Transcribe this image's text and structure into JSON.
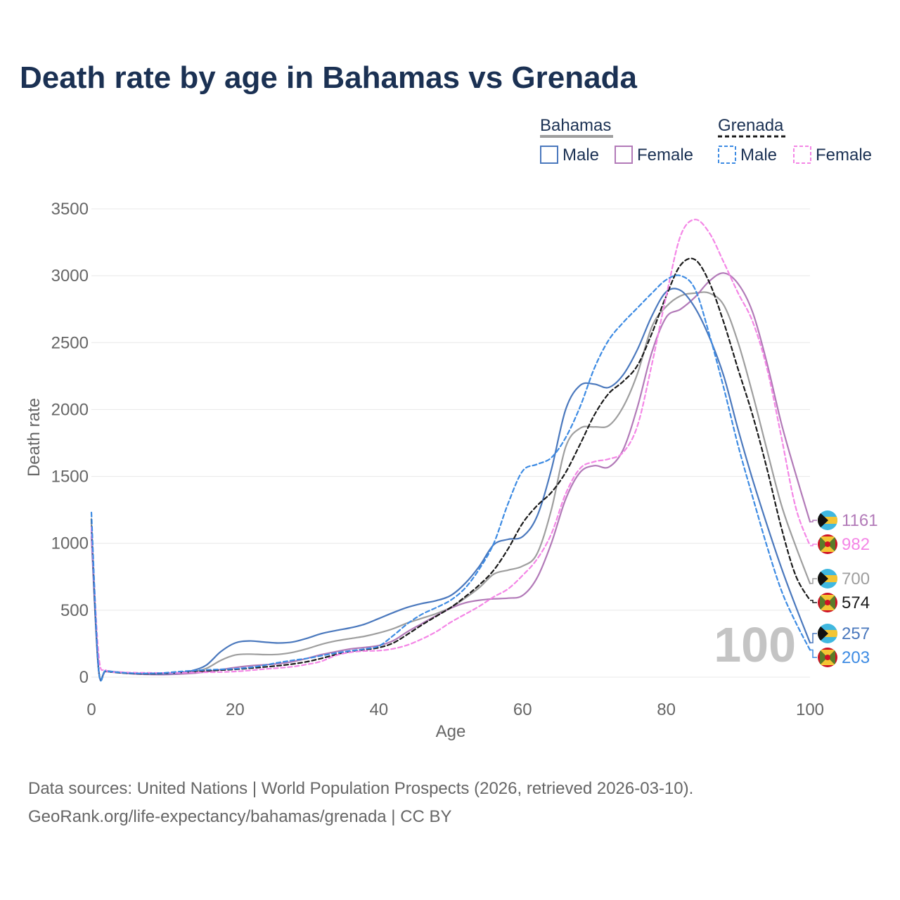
{
  "title": "Death rate by age in Bahamas vs Grenada",
  "legend": {
    "group1": "Bahamas",
    "group2": "Grenada",
    "male_label": "Male",
    "female_label": "Female"
  },
  "overlay_age": "100",
  "footer": {
    "line1": "Data sources: United Nations | World Population Prospects (2026, retrieved 2026-03-10).",
    "line2": "GeoRank.org/life-expectancy/bahamas/grenada | CC BY"
  },
  "colors": {
    "title": "#1b3153",
    "bahamas_male": "#4a78bd",
    "bahamas_female": "#b27ab8",
    "bahamas_total": "#9e9e9e",
    "grenada_male": "#3d8be3",
    "grenada_female": "#f486e6",
    "grenada_total": "#1a1a1a",
    "grid": "#e8e8e8",
    "axis_text": "#666666",
    "overlay": "#c4c4c4"
  },
  "chart_data": {
    "type": "line",
    "xlabel": "Age",
    "ylabel": "Death rate",
    "xlim": [
      0,
      100
    ],
    "ylim": [
      0,
      3500
    ],
    "xticks": [
      0,
      20,
      40,
      60,
      80,
      100
    ],
    "yticks": [
      0,
      500,
      1000,
      1500,
      2000,
      2500,
      3000,
      3500
    ],
    "grid": true,
    "series": [
      {
        "name": "Bahamas Total",
        "country": "Bahamas",
        "sex": "Total",
        "color": "#9e9e9e",
        "dash": false,
        "end_value": 700,
        "x": [
          0,
          1,
          2,
          4,
          6,
          8,
          10,
          12,
          14,
          16,
          18,
          20,
          22,
          24,
          26,
          28,
          30,
          32,
          34,
          36,
          38,
          40,
          42,
          44,
          46,
          48,
          50,
          52,
          54,
          56,
          58,
          60,
          62,
          64,
          66,
          68,
          70,
          72,
          74,
          76,
          78,
          80,
          82,
          84,
          86,
          88,
          90,
          92,
          94,
          96,
          98,
          100
        ],
        "y": [
          1150,
          58,
          45,
          34,
          26,
          22,
          22,
          26,
          38,
          65,
          125,
          165,
          172,
          168,
          170,
          185,
          212,
          245,
          270,
          288,
          305,
          330,
          362,
          405,
          440,
          475,
          520,
          590,
          670,
          770,
          800,
          830,
          920,
          1250,
          1720,
          1860,
          1870,
          1880,
          2020,
          2270,
          2620,
          2770,
          2850,
          2870,
          2870,
          2780,
          2500,
          2120,
          1700,
          1290,
          980,
          700
        ]
      },
      {
        "name": "Bahamas Male",
        "country": "Bahamas",
        "sex": "Male",
        "color": "#4a78bd",
        "dash": false,
        "end_value": 257,
        "x": [
          0,
          1,
          2,
          4,
          6,
          8,
          10,
          12,
          14,
          16,
          18,
          20,
          22,
          24,
          26,
          28,
          30,
          32,
          34,
          36,
          38,
          40,
          42,
          44,
          46,
          48,
          50,
          52,
          54,
          56,
          58,
          60,
          62,
          64,
          66,
          68,
          70,
          72,
          74,
          76,
          78,
          80,
          82,
          84,
          86,
          88,
          90,
          92,
          94,
          96,
          98,
          100
        ],
        "y": [
          1100,
          60,
          48,
          36,
          28,
          24,
          24,
          30,
          48,
          90,
          190,
          255,
          270,
          262,
          255,
          262,
          290,
          325,
          348,
          368,
          395,
          438,
          482,
          522,
          550,
          572,
          610,
          700,
          830,
          990,
          1030,
          1050,
          1200,
          1550,
          2000,
          2180,
          2190,
          2165,
          2260,
          2450,
          2700,
          2880,
          2890,
          2760,
          2540,
          2250,
          1850,
          1480,
          1140,
          820,
          530,
          257
        ]
      },
      {
        "name": "Bahamas Female",
        "country": "Bahamas",
        "sex": "Female",
        "color": "#b27ab8",
        "dash": false,
        "end_value": 1161,
        "x": [
          0,
          1,
          2,
          4,
          6,
          8,
          10,
          12,
          14,
          16,
          18,
          20,
          22,
          24,
          26,
          28,
          30,
          32,
          34,
          36,
          38,
          40,
          42,
          44,
          46,
          48,
          50,
          52,
          54,
          56,
          58,
          60,
          62,
          64,
          66,
          68,
          70,
          72,
          74,
          76,
          78,
          80,
          82,
          84,
          86,
          88,
          90,
          92,
          94,
          96,
          98,
          100
        ],
        "y": [
          1050,
          55,
          42,
          32,
          24,
          20,
          19,
          22,
          28,
          40,
          56,
          72,
          84,
          92,
          100,
          115,
          140,
          168,
          190,
          210,
          222,
          236,
          272,
          340,
          400,
          460,
          515,
          555,
          575,
          585,
          590,
          610,
          740,
          1000,
          1330,
          1530,
          1580,
          1570,
          1700,
          2020,
          2430,
          2690,
          2750,
          2840,
          2960,
          3020,
          2940,
          2730,
          2350,
          1900,
          1520,
          1161
        ]
      },
      {
        "name": "Grenada Total",
        "country": "Grenada",
        "sex": "Total",
        "color": "#1a1a1a",
        "dash": true,
        "end_value": 574,
        "x": [
          0,
          1,
          2,
          4,
          6,
          8,
          10,
          12,
          14,
          16,
          18,
          20,
          22,
          24,
          26,
          28,
          30,
          32,
          34,
          36,
          38,
          40,
          42,
          44,
          46,
          48,
          50,
          52,
          54,
          56,
          58,
          60,
          62,
          64,
          66,
          68,
          70,
          72,
          74,
          76,
          78,
          80,
          82,
          84,
          86,
          88,
          90,
          92,
          94,
          96,
          98,
          100
        ],
        "y": [
          1180,
          62,
          44,
          32,
          26,
          25,
          28,
          35,
          42,
          48,
          52,
          58,
          66,
          75,
          85,
          98,
          115,
          140,
          168,
          192,
          205,
          220,
          255,
          320,
          390,
          455,
          520,
          600,
          690,
          800,
          960,
          1150,
          1280,
          1380,
          1530,
          1740,
          1960,
          2120,
          2210,
          2330,
          2570,
          2850,
          3080,
          3120,
          2950,
          2650,
          2300,
          1960,
          1560,
          1120,
          760,
          574
        ]
      },
      {
        "name": "Grenada Male",
        "country": "Grenada",
        "sex": "Male",
        "color": "#3d8be3",
        "dash": true,
        "end_value": 203,
        "x": [
          0,
          1,
          2,
          4,
          6,
          8,
          10,
          12,
          14,
          16,
          18,
          20,
          22,
          24,
          26,
          28,
          30,
          32,
          34,
          36,
          38,
          40,
          42,
          44,
          46,
          48,
          50,
          52,
          54,
          56,
          58,
          60,
          62,
          64,
          66,
          68,
          70,
          72,
          74,
          76,
          78,
          80,
          82,
          84,
          86,
          88,
          90,
          92,
          94,
          96,
          98,
          100
        ],
        "y": [
          1230,
          64,
          46,
          34,
          28,
          28,
          31,
          40,
          48,
          54,
          58,
          62,
          72,
          88,
          108,
          125,
          140,
          160,
          180,
          196,
          210,
          232,
          310,
          400,
          470,
          520,
          575,
          665,
          810,
          1000,
          1300,
          1540,
          1590,
          1640,
          1790,
          2020,
          2310,
          2520,
          2650,
          2760,
          2870,
          2970,
          3000,
          2900,
          2560,
          2160,
          1730,
          1350,
          980,
          650,
          410,
          203
        ]
      },
      {
        "name": "Grenada Female",
        "country": "Grenada",
        "sex": "Female",
        "color": "#f486e6",
        "dash": true,
        "end_value": 982,
        "x": [
          0,
          1,
          2,
          4,
          6,
          8,
          10,
          12,
          14,
          16,
          18,
          20,
          22,
          24,
          26,
          28,
          30,
          32,
          34,
          36,
          38,
          40,
          42,
          44,
          46,
          48,
          50,
          52,
          54,
          56,
          58,
          60,
          62,
          64,
          66,
          68,
          70,
          72,
          74,
          76,
          78,
          80,
          82,
          84,
          86,
          88,
          90,
          92,
          94,
          96,
          98,
          100
        ],
        "y": [
          1120,
          170,
          52,
          38,
          33,
          32,
          31,
          32,
          34,
          36,
          38,
          42,
          50,
          60,
          68,
          78,
          95,
          118,
          162,
          185,
          195,
          198,
          212,
          240,
          285,
          340,
          410,
          470,
          530,
          600,
          660,
          760,
          880,
          1070,
          1370,
          1560,
          1610,
          1630,
          1680,
          1880,
          2340,
          2850,
          3300,
          3420,
          3320,
          3100,
          2870,
          2660,
          2310,
          1800,
          1270,
          982
        ]
      }
    ]
  }
}
